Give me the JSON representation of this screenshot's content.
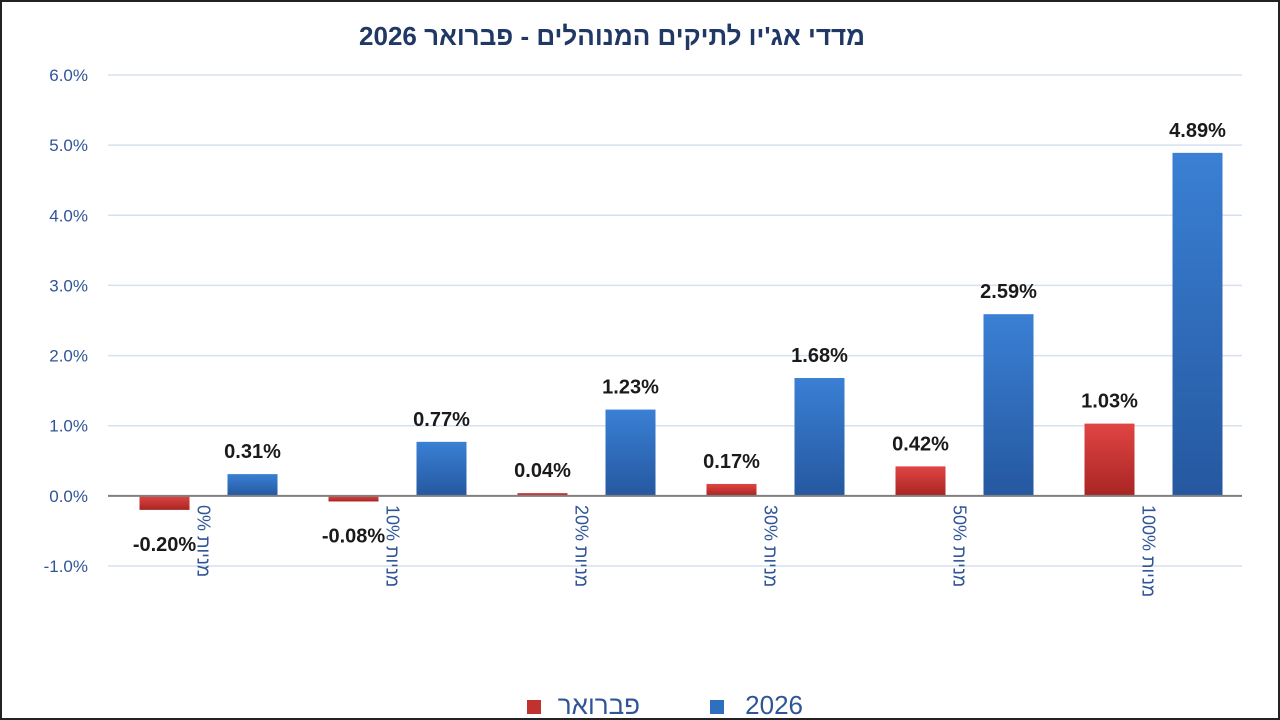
{
  "chart_data": {
    "type": "bar",
    "title": "מדדי אג'יו לתיקים המנוהלים  -  פברואר 2026",
    "categories": [
      "0% מניות",
      "10% מניות",
      "20% מניות",
      "30% מניות",
      "50% מניות",
      "100% מניות"
    ],
    "series": [
      {
        "name": "פברואר",
        "color": "#c0312f",
        "values": [
          -0.2,
          -0.08,
          0.04,
          0.17,
          0.42,
          1.03
        ],
        "labels": [
          "-0.20%",
          "-0.08%",
          "0.04%",
          "0.17%",
          "0.42%",
          "1.03%"
        ]
      },
      {
        "name": "2026",
        "color": "#2e6fc0",
        "values": [
          0.31,
          0.77,
          1.23,
          1.68,
          2.59,
          4.89
        ],
        "labels": [
          "0.31%",
          "0.77%",
          "1.23%",
          "1.68%",
          "2.59%",
          "4.89%"
        ]
      }
    ],
    "ylim": [
      -1.0,
      6.0
    ],
    "yticks": [
      -1.0,
      0.0,
      1.0,
      2.0,
      3.0,
      4.0,
      5.0,
      6.0
    ],
    "ytick_labels": [
      "-1.0%",
      "0.0%",
      "1.0%",
      "2.0%",
      "3.0%",
      "4.0%",
      "5.0%",
      "6.0%"
    ],
    "grid": true,
    "legend": "bottom",
    "xlabel": "",
    "ylabel": ""
  }
}
